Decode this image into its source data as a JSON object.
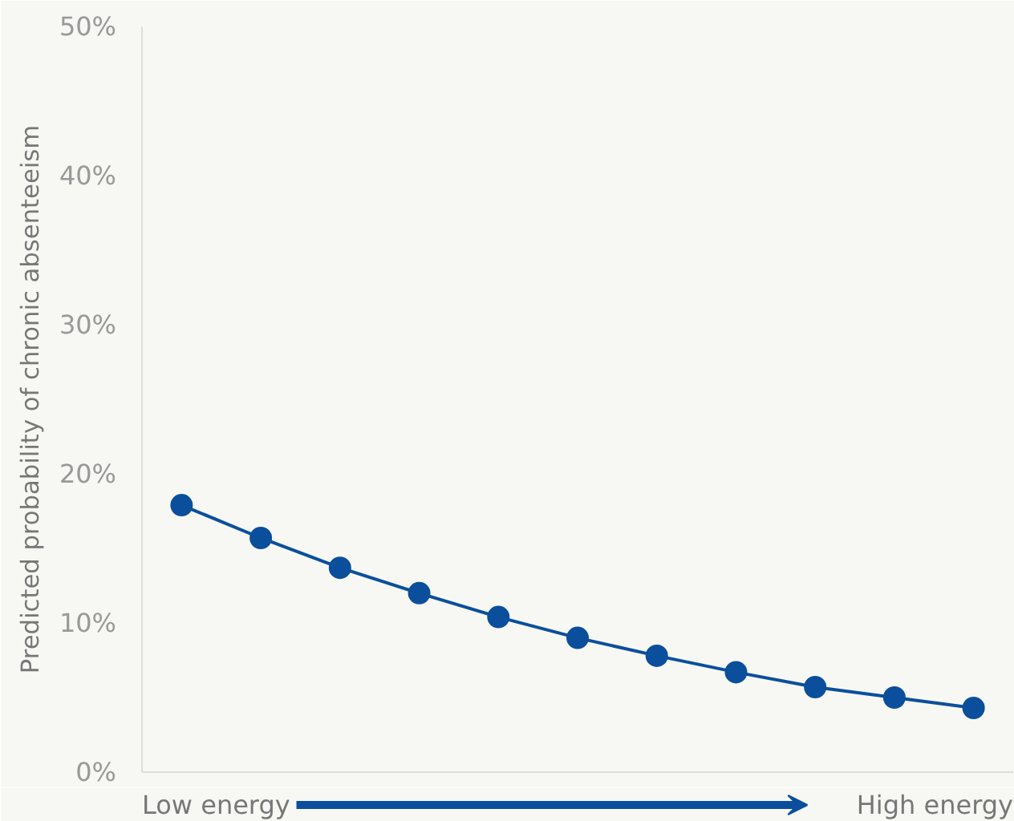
{
  "chart_data": {
    "type": "line",
    "ylabel": "Predicted probability of chronic absenteeism",
    "categories": [
      null,
      null,
      null,
      null,
      null,
      null,
      null,
      null,
      null,
      null,
      null
    ],
    "series": [
      {
        "color": "#0b4f9c",
        "values": [
          17.9,
          15.7,
          13.7,
          12.0,
          10.4,
          9.0,
          7.8,
          6.7,
          5.7,
          5.0,
          4.3
        ]
      }
    ],
    "ylim": [
      0,
      50
    ],
    "yticks": [
      {
        "value": 0,
        "label": "0%"
      },
      {
        "value": 10,
        "label": "10%"
      },
      {
        "value": 20,
        "label": "20%"
      },
      {
        "value": 30,
        "label": "30%"
      },
      {
        "value": 40,
        "label": "40%"
      },
      {
        "value": 50,
        "label": "50%"
      }
    ],
    "tick_labels": "y",
    "grid": false,
    "marker": "circle",
    "line_style": "solid",
    "annotations": [
      "Low energy",
      "High energy"
    ]
  }
}
